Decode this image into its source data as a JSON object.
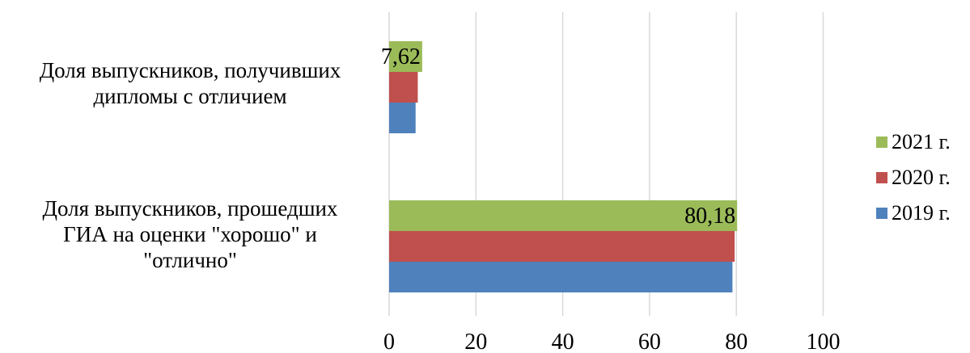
{
  "chart_data": {
    "type": "bar",
    "orientation": "horizontal",
    "categories": [
      [
        "Доля выпускников, получивших",
        "дипломы с отличием"
      ],
      [
        "Доля выпускников, прошедших",
        "ГИА на оценки \"хорошо\" и",
        "\"отлично\""
      ]
    ],
    "series": [
      {
        "name": "2021 г.",
        "color": "#9BBB59",
        "values": [
          7.62,
          80.18
        ],
        "data_labels": [
          "7,62",
          "80,18"
        ]
      },
      {
        "name": "2020 г.",
        "color": "#C0504D",
        "values": [
          6.6,
          79.6
        ],
        "data_labels": [
          "",
          ""
        ]
      },
      {
        "name": "2019 г.",
        "color": "#4F81BD",
        "values": [
          6.1,
          79.1
        ],
        "data_labels": [
          "",
          ""
        ]
      }
    ],
    "xlim": [
      0,
      100
    ],
    "ticks": [
      "0",
      "20",
      "40",
      "60",
      "80",
      "100"
    ],
    "gridlines": true,
    "legend_position": "right",
    "title": "",
    "xlabel": "",
    "ylabel": ""
  }
}
